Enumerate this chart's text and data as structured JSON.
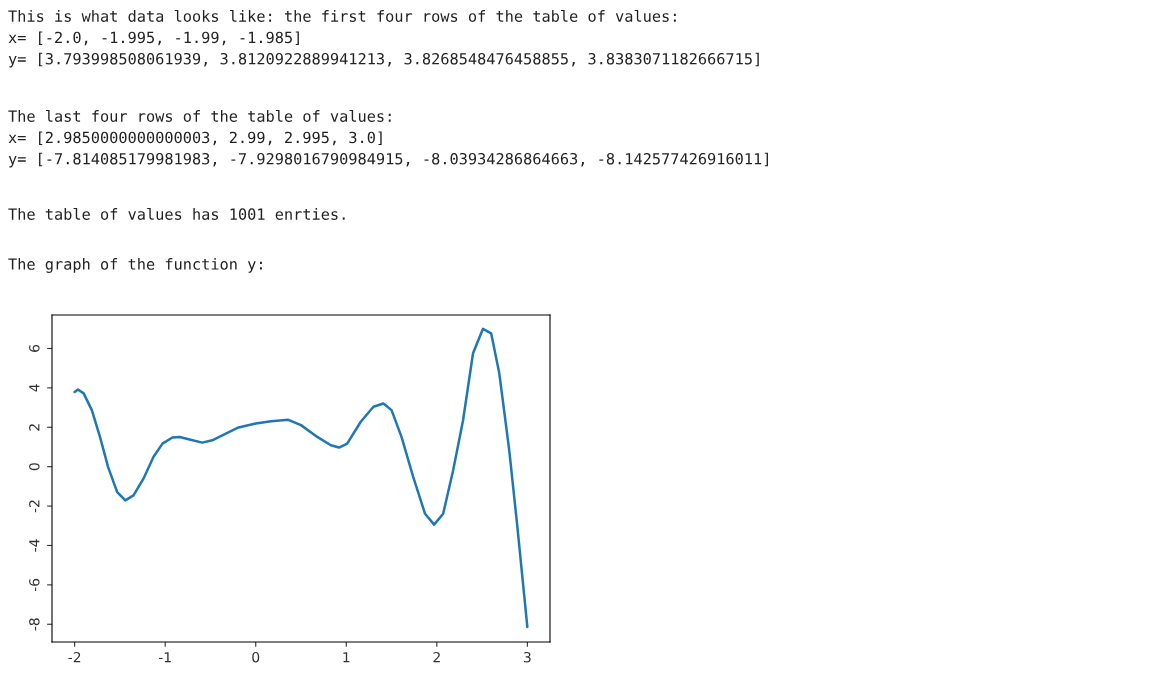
{
  "chart_data": {
    "type": "line",
    "annotations": [
      "This is what data looks like: the first four rows of the table of values:\nx= [-2.0, -1.995, -1.99, -1.985]\ny= [3.793998508061939, 3.8120922889941213, 3.8268548476458855, 3.8383071182666715]",
      "The last four rows of the table of values:\nx= [2.9850000000000003, 2.99, 2.995, 3.0]\ny= [-7.814085179981983, -7.9298016790984915, -8.03934286864663, -8.142577426916011]",
      "The table of values has 1001 enrties.",
      "The graph of the function y:"
    ],
    "x": [
      -2.0,
      -1.964,
      -1.9,
      -1.81,
      -1.72,
      -1.63,
      -1.53,
      -1.44,
      -1.35,
      -1.24,
      -1.13,
      -1.03,
      -0.92,
      -0.84,
      -0.73,
      -0.59,
      -0.48,
      -0.33,
      -0.19,
      0.0,
      0.17,
      0.36,
      0.5,
      0.68,
      0.83,
      0.92,
      1.01,
      1.16,
      1.3,
      1.41,
      1.5,
      1.61,
      1.74,
      1.87,
      1.97,
      2.07,
      2.18,
      2.29,
      2.4,
      2.51,
      2.6,
      2.69,
      2.8,
      2.89,
      3.0
    ],
    "series": [
      {
        "color": "#1f77b4",
        "values": [
          3.79,
          3.92,
          3.72,
          2.87,
          1.51,
          -0.02,
          -1.29,
          -1.71,
          -1.46,
          -0.61,
          0.49,
          1.17,
          1.48,
          1.51,
          1.38,
          1.22,
          1.34,
          1.68,
          1.99,
          2.19,
          2.31,
          2.38,
          2.11,
          1.51,
          1.09,
          0.97,
          1.17,
          2.28,
          3.04,
          3.21,
          2.87,
          1.51,
          -0.53,
          -2.39,
          -2.94,
          -2.39,
          -0.19,
          2.36,
          5.76,
          7.0,
          6.77,
          4.74,
          0.83,
          -3.07,
          -8.14
        ]
      }
    ],
    "xlim": [
      -2.25,
      3.25
    ],
    "ylim": [
      -8.9,
      7.7
    ],
    "xticks": [
      -2,
      -1,
      0,
      1,
      2,
      3
    ],
    "yticks": [
      -8,
      -6,
      -4,
      -2,
      0,
      2,
      4,
      6
    ],
    "grid": false,
    "legend": false
  }
}
